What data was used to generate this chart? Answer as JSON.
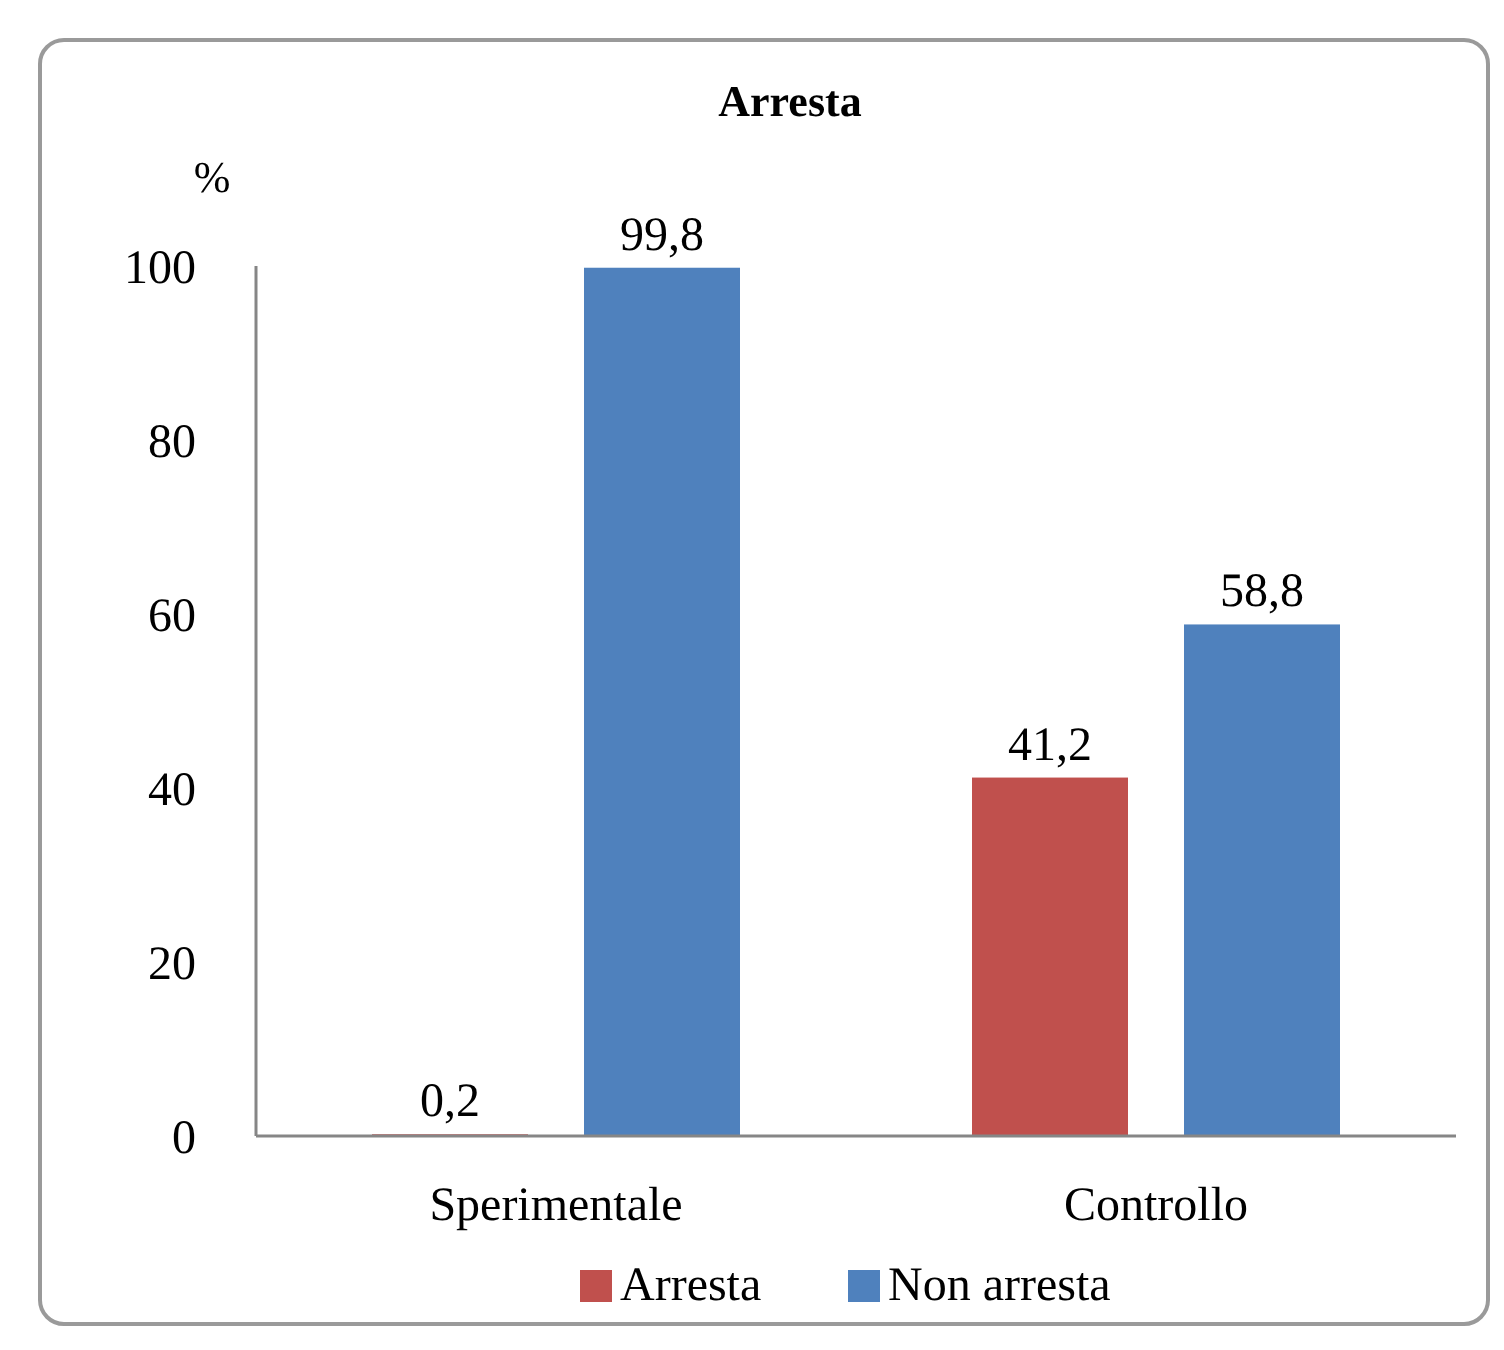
{
  "chart_data": {
    "type": "bar",
    "title": "Arresta",
    "ylabel": "%",
    "categories": [
      "Sperimentale",
      "Controllo"
    ],
    "series": [
      {
        "name": "Arresta",
        "color": "#c0504d",
        "values": [
          0.2,
          41.2
        ],
        "value_labels": [
          "0,2",
          "41,2"
        ]
      },
      {
        "name": "Non arresta",
        "color": "#4f81bd",
        "values": [
          99.8,
          58.8
        ],
        "value_labels": [
          "99,8",
          "58,8"
        ]
      }
    ],
    "ylim": [
      0,
      100
    ],
    "yticks": [
      0,
      20,
      40,
      60,
      80,
      100
    ],
    "grid": false,
    "legend": "bottom"
  }
}
